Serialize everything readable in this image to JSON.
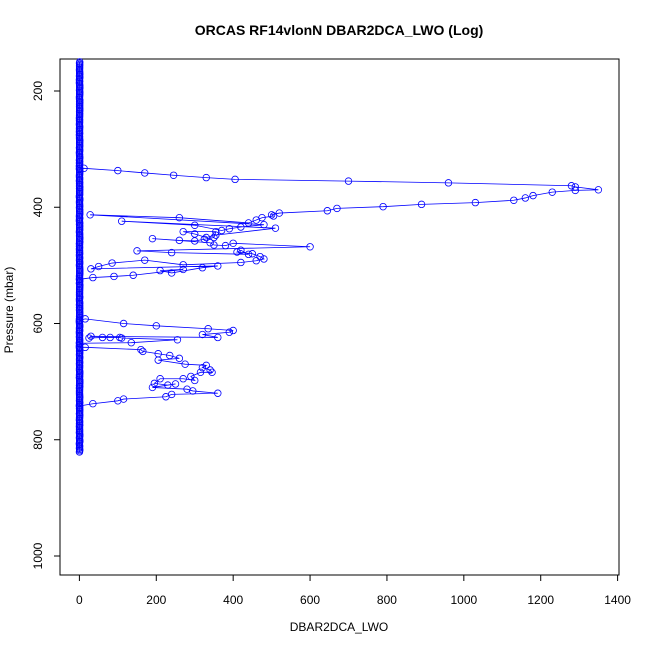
{
  "chart_data": {
    "type": "line",
    "title": "ORCAS RF14vlonN DBAR2DCA_LWO (Log)",
    "xlabel": "DBAR2DCA_LWO",
    "ylabel": "Pressure (mbar)",
    "xlim": [
      0,
      1400
    ],
    "ylim": [
      1040,
      150
    ],
    "y_inverted": true,
    "x_ticks": [
      0,
      200,
      400,
      600,
      800,
      1000,
      1200,
      1400
    ],
    "y_ticks": [
      200,
      400,
      600,
      800,
      1000
    ],
    "grid": false,
    "legend": "none",
    "marker": "open-circle",
    "series_color": "#0000ff",
    "series": [
      {
        "points": [
          [
            0,
            334
          ],
          [
            12,
            333
          ],
          [
            100,
            337
          ],
          [
            170,
            341
          ],
          [
            245,
            345
          ],
          [
            330,
            349
          ],
          [
            405,
            352
          ],
          [
            700,
            355
          ],
          [
            960,
            358
          ],
          [
            1280,
            363
          ],
          [
            1290,
            365
          ],
          [
            1350,
            370
          ],
          [
            1290,
            371
          ],
          [
            1230,
            374
          ],
          [
            1180,
            380
          ],
          [
            1160,
            384
          ],
          [
            1130,
            388
          ],
          [
            1030,
            392
          ],
          [
            890,
            395
          ],
          [
            790,
            399
          ],
          [
            670,
            402
          ],
          [
            645,
            406
          ],
          [
            520,
            410
          ],
          [
            500,
            413
          ],
          [
            505,
            415
          ],
          [
            475,
            418
          ],
          [
            460,
            422
          ],
          [
            440,
            427
          ],
          [
            260,
            418
          ],
          [
            28,
            413
          ],
          [
            480,
            430
          ],
          [
            420,
            434
          ],
          [
            390,
            437
          ],
          [
            370,
            440
          ],
          [
            300,
            431
          ],
          [
            110,
            424
          ],
          [
            510,
            436
          ],
          [
            355,
            448
          ],
          [
            330,
            452
          ],
          [
            300,
            446
          ],
          [
            270,
            442
          ],
          [
            355,
            442
          ],
          [
            350,
            452
          ],
          [
            325,
            455
          ],
          [
            300,
            458
          ],
          [
            260,
            457
          ],
          [
            190,
            454
          ],
          [
            340,
            461
          ],
          [
            350,
            465
          ],
          [
            380,
            466
          ],
          [
            400,
            462
          ],
          [
            600,
            468
          ],
          [
            150,
            475
          ],
          [
            240,
            478
          ],
          [
            440,
            481
          ],
          [
            420,
            474
          ],
          [
            410,
            477
          ],
          [
            450,
            480
          ],
          [
            470,
            485
          ],
          [
            480,
            489
          ],
          [
            460,
            492
          ],
          [
            420,
            495
          ],
          [
            270,
            499
          ],
          [
            170,
            491
          ],
          [
            85,
            496
          ],
          [
            50,
            502
          ],
          [
            30,
            506
          ],
          [
            360,
            501
          ],
          [
            320,
            504
          ],
          [
            240,
            513
          ],
          [
            210,
            509
          ],
          [
            270,
            507
          ],
          [
            140,
            517
          ],
          [
            90,
            519
          ],
          [
            35,
            521
          ],
          [
            0,
            524
          ]
        ]
      },
      {
        "points": [
          [
            0,
            595
          ],
          [
            15,
            592
          ],
          [
            115,
            600
          ],
          [
            200,
            604
          ],
          [
            335,
            609
          ],
          [
            400,
            612
          ],
          [
            390,
            615
          ],
          [
            320,
            619
          ],
          [
            360,
            624
          ],
          [
            30,
            622
          ],
          [
            25,
            625
          ],
          [
            60,
            624
          ],
          [
            80,
            624
          ],
          [
            105,
            624
          ],
          [
            110,
            625
          ],
          [
            255,
            628
          ],
          [
            135,
            633
          ],
          [
            0,
            634
          ]
        ]
      },
      {
        "points": [
          [
            0,
            641
          ],
          [
            15,
            641
          ],
          [
            160,
            645
          ],
          [
            165,
            648
          ],
          [
            205,
            652
          ],
          [
            235,
            655
          ],
          [
            260,
            660
          ],
          [
            205,
            663
          ],
          [
            275,
            670
          ],
          [
            330,
            672
          ],
          [
            320,
            676
          ],
          [
            340,
            680
          ],
          [
            345,
            684
          ],
          [
            315,
            684
          ],
          [
            290,
            691
          ],
          [
            300,
            698
          ],
          [
            270,
            695
          ],
          [
            210,
            695
          ],
          [
            195,
            703
          ],
          [
            230,
            706
          ],
          [
            250,
            704
          ],
          [
            190,
            710
          ],
          [
            280,
            713
          ],
          [
            295,
            716
          ],
          [
            360,
            720
          ],
          [
            240,
            722
          ],
          [
            225,
            726
          ],
          [
            115,
            730
          ],
          [
            100,
            733
          ],
          [
            35,
            738
          ],
          [
            0,
            742
          ]
        ]
      },
      {
        "dense_near_zero": true,
        "y_from": 150,
        "y_to": 822
      }
    ]
  }
}
